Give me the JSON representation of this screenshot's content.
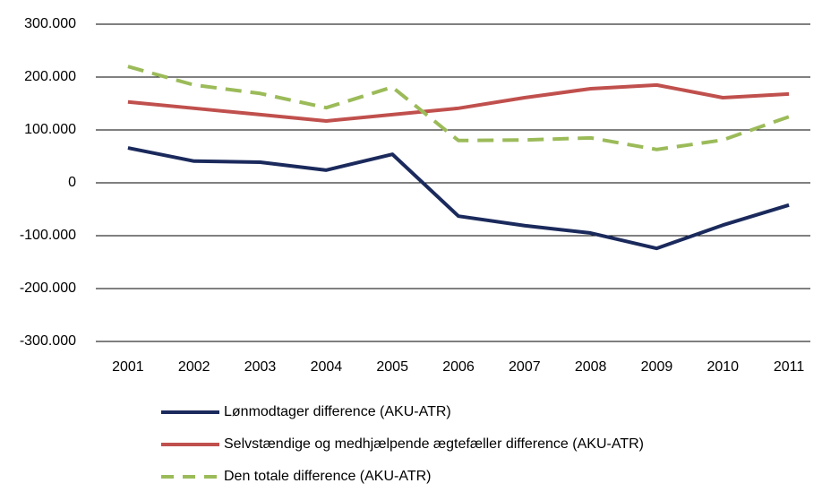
{
  "chart_data": {
    "type": "line",
    "categories": [
      "2001",
      "2002",
      "2003",
      "2004",
      "2005",
      "2006",
      "2007",
      "2008",
      "2009",
      "2010",
      "2011"
    ],
    "series": [
      {
        "name": "Lønmodtager difference (AKU-ATR)",
        "color": "#1b2a5c",
        "dashed": false,
        "values": [
          66000,
          41000,
          39000,
          24000,
          54000,
          -63000,
          -81000,
          -95000,
          -124000,
          -80000,
          -42000
        ]
      },
      {
        "name": "Selvstændige og medhjælpende ægtefæller difference (AKU-ATR)",
        "color": "#c0504d",
        "dashed": false,
        "values": [
          153000,
          141000,
          129000,
          117000,
          129000,
          141000,
          161000,
          178000,
          185000,
          161000,
          168000
        ]
      },
      {
        "name": "Den totale difference (AKU-ATR)",
        "color": "#9bbb59",
        "dashed": true,
        "values": [
          220000,
          185000,
          169000,
          142000,
          181000,
          80000,
          81000,
          85000,
          63000,
          81000,
          125000
        ]
      }
    ],
    "ylim": [
      -300000,
      300000
    ],
    "yticks": [
      {
        "value": -300000,
        "label": "-300.000"
      },
      {
        "value": -200000,
        "label": "-200.000"
      },
      {
        "value": -100000,
        "label": "-100.000"
      },
      0,
      {
        "value": 100000,
        "label": "100.000"
      },
      {
        "value": 200000,
        "label": "200.000"
      },
      {
        "value": 300000,
        "label": "300.000"
      }
    ],
    "grid": true
  }
}
